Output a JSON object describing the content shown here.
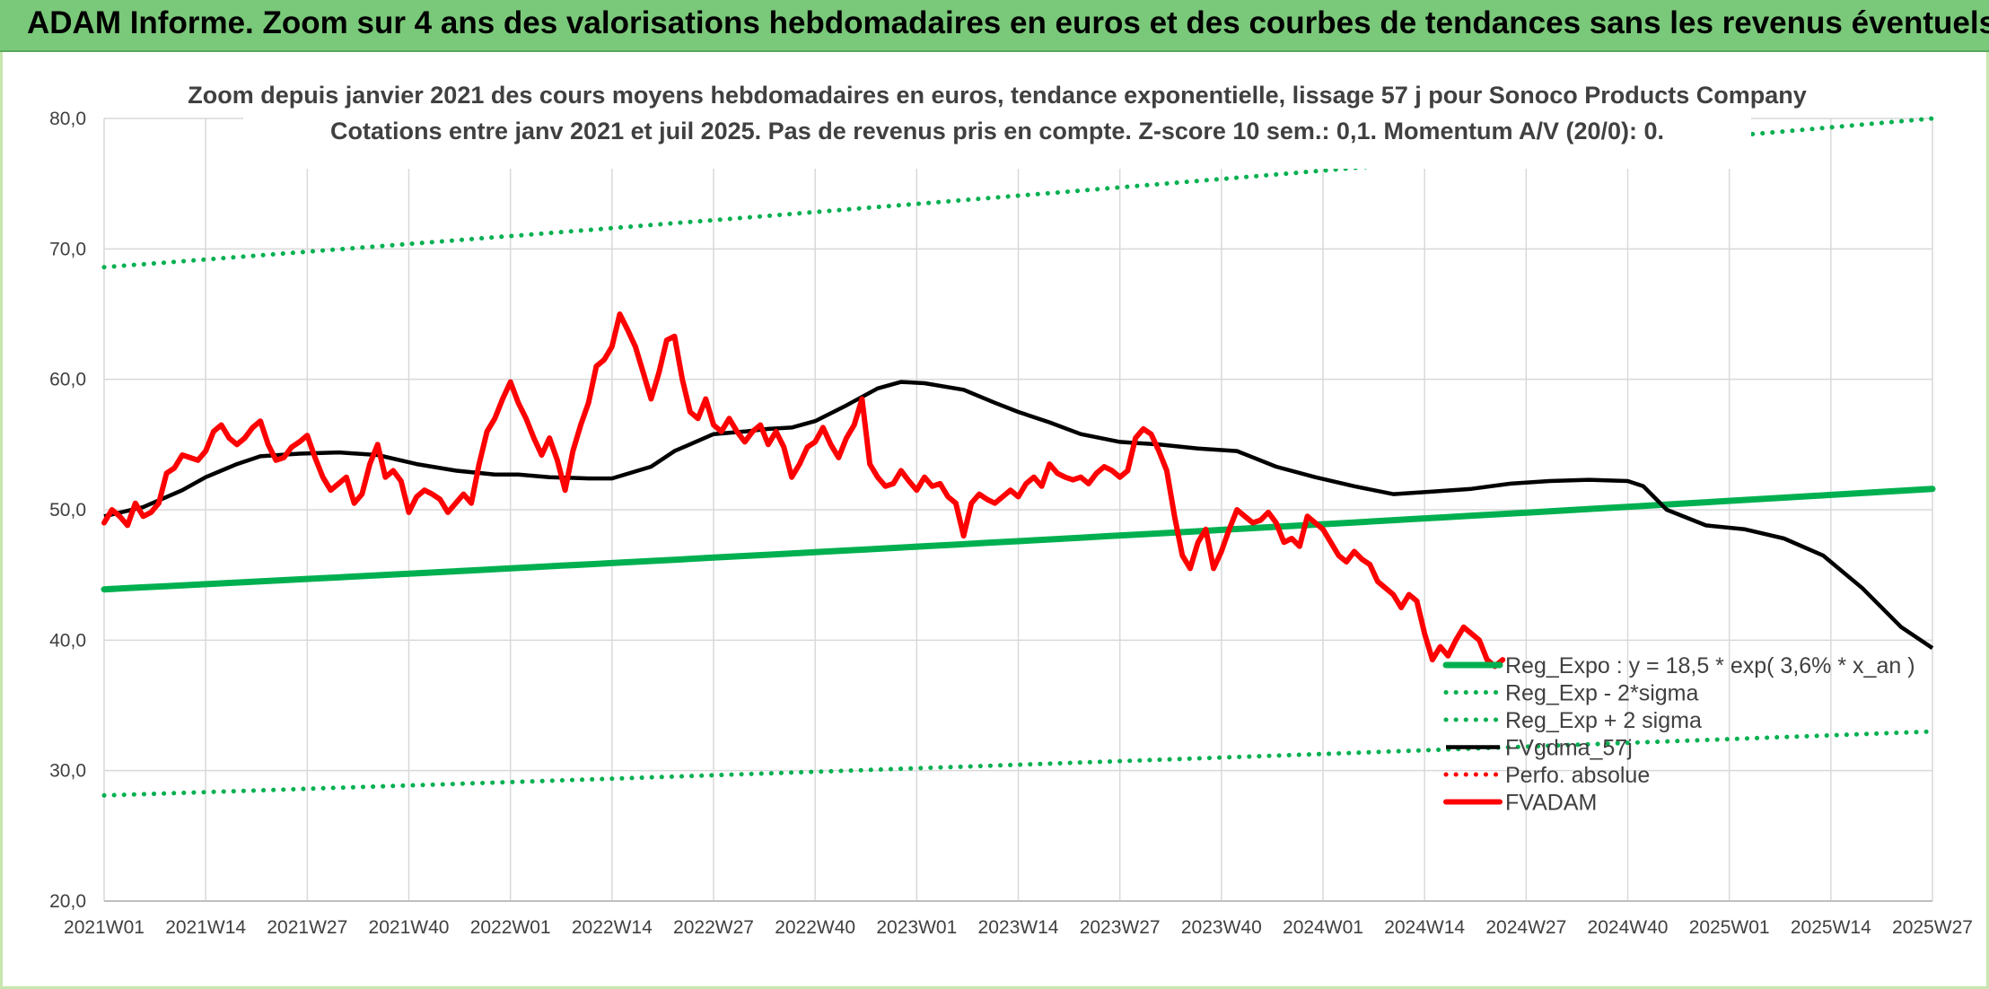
{
  "banner": {
    "title": "ADAM Informe. Zoom sur 4 ans des valorisations hebdomadaires en euros et des courbes de tendances sans les revenus éventuels"
  },
  "colors": {
    "banner": "#7ac87a",
    "reg_expo": "#00b050",
    "ma": "#000000",
    "price": "#ff0000",
    "grid": "#d9d9d9"
  },
  "chart_data": {
    "type": "line",
    "title": "Zoom depuis janvier 2021 des cours moyens hebdomadaires en euros, tendance exponentielle, lissage 57 j pour Sonoco Products Company",
    "subtitle": "Cotations entre janv 2021 et juil 2025. Pas de revenus pris en compte. Z-score 10 sem.: 0,1. Momentum A/V (20/0): 0.",
    "x_ticks": [
      "2021W01",
      "2021W14",
      "2021W27",
      "2021W40",
      "2022W01",
      "2022W14",
      "2022W27",
      "2022W40",
      "2023W01",
      "2023W14",
      "2023W27",
      "2023W40",
      "2024W01",
      "2024W14",
      "2024W27",
      "2024W40",
      "2025W01",
      "2025W14",
      "2025W27"
    ],
    "y_ticks": [
      "20,0",
      "30,0",
      "40,0",
      "50,0",
      "60,0",
      "70,0",
      "80,0"
    ],
    "ylim": [
      20,
      80
    ],
    "x_range_weeks": [
      0,
      234
    ],
    "grid": true,
    "legend_position": "bottom-right",
    "series": [
      {
        "name": "Reg_Expo : y = 18,5 * exp( 3,6% *  x_an )",
        "style": "solid-thick",
        "color": "#00b050",
        "points": [
          [
            0,
            43.9
          ],
          [
            234,
            51.6
          ]
        ]
      },
      {
        "name": "Reg_Exp - 2*sigma",
        "style": "dotted",
        "color": "#00b050",
        "points": [
          [
            0,
            28.1
          ],
          [
            234,
            33.0
          ]
        ]
      },
      {
        "name": "Reg_Exp + 2 sigma",
        "style": "dotted",
        "color": "#00b050",
        "points": [
          [
            0,
            68.6
          ],
          [
            234,
            80.0
          ]
        ]
      },
      {
        "name": "FVgdma_57j",
        "style": "solid",
        "color": "#000000",
        "points": [
          [
            0,
            49.5
          ],
          [
            5,
            50.2
          ],
          [
            10,
            51.5
          ],
          [
            13,
            52.5
          ],
          [
            17,
            53.5
          ],
          [
            20,
            54.1
          ],
          [
            25,
            54.3
          ],
          [
            30,
            54.4
          ],
          [
            35,
            54.2
          ],
          [
            40,
            53.5
          ],
          [
            45,
            53.0
          ],
          [
            50,
            52.7
          ],
          [
            53,
            52.7
          ],
          [
            57,
            52.5
          ],
          [
            62,
            52.4
          ],
          [
            65,
            52.4
          ],
          [
            70,
            53.3
          ],
          [
            73,
            54.5
          ],
          [
            78,
            55.8
          ],
          [
            82,
            56.0
          ],
          [
            85,
            56.2
          ],
          [
            88,
            56.3
          ],
          [
            91,
            56.8
          ],
          [
            95,
            58.0
          ],
          [
            99,
            59.3
          ],
          [
            102,
            59.8
          ],
          [
            105,
            59.7
          ],
          [
            110,
            59.2
          ],
          [
            114,
            58.2
          ],
          [
            117,
            57.5
          ],
          [
            121,
            56.7
          ],
          [
            125,
            55.8
          ],
          [
            130,
            55.2
          ],
          [
            135,
            55.0
          ],
          [
            140,
            54.7
          ],
          [
            145,
            54.5
          ],
          [
            150,
            53.3
          ],
          [
            155,
            52.5
          ],
          [
            160,
            51.8
          ],
          [
            165,
            51.2
          ],
          [
            170,
            51.4
          ],
          [
            175,
            51.6
          ],
          [
            180,
            52.0
          ],
          [
            185,
            52.2
          ],
          [
            190,
            52.3
          ],
          [
            195,
            52.2
          ],
          [
            197,
            51.8
          ],
          [
            200,
            50.0
          ],
          [
            205,
            48.8
          ],
          [
            210,
            48.5
          ],
          [
            215,
            47.8
          ],
          [
            220,
            46.5
          ],
          [
            225,
            44.0
          ],
          [
            230,
            41.0
          ],
          [
            234,
            39.4
          ]
        ]
      },
      {
        "name": "Perfo. absolue",
        "style": "dotted",
        "color": "#ff0000",
        "points": []
      },
      {
        "name": "FVADAM",
        "style": "solid-thick",
        "color": "#ff0000",
        "points": [
          [
            0,
            49.0
          ],
          [
            1,
            50.0
          ],
          [
            2,
            49.5
          ],
          [
            3,
            48.8
          ],
          [
            4,
            50.5
          ],
          [
            5,
            49.5
          ],
          [
            6,
            49.8
          ],
          [
            7,
            50.5
          ],
          [
            8,
            52.8
          ],
          [
            9,
            53.2
          ],
          [
            10,
            54.2
          ],
          [
            11,
            54.0
          ],
          [
            12,
            53.8
          ],
          [
            13,
            54.5
          ],
          [
            14,
            56.0
          ],
          [
            15,
            56.5
          ],
          [
            16,
            55.5
          ],
          [
            17,
            55.0
          ],
          [
            18,
            55.5
          ],
          [
            19,
            56.3
          ],
          [
            20,
            56.8
          ],
          [
            21,
            55.0
          ],
          [
            22,
            53.8
          ],
          [
            23,
            54.0
          ],
          [
            24,
            54.8
          ],
          [
            25,
            55.2
          ],
          [
            26,
            55.7
          ],
          [
            27,
            54.0
          ],
          [
            28,
            52.5
          ],
          [
            29,
            51.5
          ],
          [
            30,
            52.0
          ],
          [
            31,
            52.5
          ],
          [
            32,
            50.5
          ],
          [
            33,
            51.2
          ],
          [
            34,
            53.5
          ],
          [
            35,
            55.0
          ],
          [
            36,
            52.5
          ],
          [
            37,
            53.0
          ],
          [
            38,
            52.2
          ],
          [
            39,
            49.8
          ],
          [
            40,
            51.0
          ],
          [
            41,
            51.5
          ],
          [
            42,
            51.2
          ],
          [
            43,
            50.8
          ],
          [
            44,
            49.8
          ],
          [
            45,
            50.5
          ],
          [
            46,
            51.2
          ],
          [
            47,
            50.5
          ],
          [
            48,
            53.5
          ],
          [
            49,
            56.0
          ],
          [
            50,
            57.0
          ],
          [
            51,
            58.5
          ],
          [
            52,
            59.8
          ],
          [
            53,
            58.2
          ],
          [
            54,
            57.0
          ],
          [
            55,
            55.5
          ],
          [
            56,
            54.2
          ],
          [
            57,
            55.5
          ],
          [
            58,
            53.8
          ],
          [
            59,
            51.5
          ],
          [
            60,
            54.5
          ],
          [
            61,
            56.5
          ],
          [
            62,
            58.2
          ],
          [
            63,
            61.0
          ],
          [
            64,
            61.5
          ],
          [
            65,
            62.5
          ],
          [
            66,
            65.0
          ],
          [
            67,
            63.8
          ],
          [
            68,
            62.5
          ],
          [
            69,
            60.5
          ],
          [
            70,
            58.5
          ],
          [
            71,
            60.5
          ],
          [
            72,
            63.0
          ],
          [
            73,
            63.3
          ],
          [
            74,
            60.0
          ],
          [
            75,
            57.5
          ],
          [
            76,
            57.0
          ],
          [
            77,
            58.5
          ],
          [
            78,
            56.5
          ],
          [
            79,
            56.0
          ],
          [
            80,
            57.0
          ],
          [
            81,
            56.0
          ],
          [
            82,
            55.2
          ],
          [
            83,
            56.0
          ],
          [
            84,
            56.5
          ],
          [
            85,
            55.0
          ],
          [
            86,
            56.0
          ],
          [
            87,
            54.8
          ],
          [
            88,
            52.5
          ],
          [
            89,
            53.5
          ],
          [
            90,
            54.8
          ],
          [
            91,
            55.2
          ],
          [
            92,
            56.3
          ],
          [
            93,
            55.0
          ],
          [
            94,
            54.0
          ],
          [
            95,
            55.5
          ],
          [
            96,
            56.5
          ],
          [
            97,
            58.5
          ],
          [
            98,
            53.5
          ],
          [
            99,
            52.5
          ],
          [
            100,
            51.8
          ],
          [
            101,
            52.0
          ],
          [
            102,
            53.0
          ],
          [
            103,
            52.2
          ],
          [
            104,
            51.5
          ],
          [
            105,
            52.5
          ],
          [
            106,
            51.8
          ],
          [
            107,
            52.0
          ],
          [
            108,
            51.0
          ],
          [
            109,
            50.5
          ],
          [
            110,
            48.0
          ],
          [
            111,
            50.5
          ],
          [
            112,
            51.2
          ],
          [
            113,
            50.8
          ],
          [
            114,
            50.5
          ],
          [
            115,
            51.0
          ],
          [
            116,
            51.5
          ],
          [
            117,
            51.0
          ],
          [
            118,
            52.0
          ],
          [
            119,
            52.5
          ],
          [
            120,
            51.8
          ],
          [
            121,
            53.5
          ],
          [
            122,
            52.8
          ],
          [
            123,
            52.5
          ],
          [
            124,
            52.3
          ],
          [
            125,
            52.5
          ],
          [
            126,
            52.0
          ],
          [
            127,
            52.8
          ],
          [
            128,
            53.3
          ],
          [
            129,
            53.0
          ],
          [
            130,
            52.5
          ],
          [
            131,
            53.0
          ],
          [
            132,
            55.5
          ],
          [
            133,
            56.2
          ],
          [
            134,
            55.8
          ],
          [
            135,
            54.5
          ],
          [
            136,
            53.0
          ],
          [
            137,
            49.5
          ],
          [
            138,
            46.5
          ],
          [
            139,
            45.5
          ],
          [
            140,
            47.5
          ],
          [
            141,
            48.5
          ],
          [
            142,
            45.5
          ],
          [
            143,
            46.8
          ],
          [
            144,
            48.5
          ],
          [
            145,
            50.0
          ],
          [
            146,
            49.5
          ],
          [
            147,
            49.0
          ],
          [
            148,
            49.2
          ],
          [
            149,
            49.8
          ],
          [
            150,
            49.0
          ],
          [
            151,
            47.5
          ],
          [
            152,
            47.8
          ],
          [
            153,
            47.2
          ],
          [
            154,
            49.5
          ],
          [
            155,
            49.0
          ],
          [
            156,
            48.5
          ],
          [
            157,
            47.5
          ],
          [
            158,
            46.5
          ],
          [
            159,
            46.0
          ],
          [
            160,
            46.8
          ],
          [
            161,
            46.2
          ],
          [
            162,
            45.8
          ],
          [
            163,
            44.5
          ],
          [
            164,
            44.0
          ],
          [
            165,
            43.5
          ],
          [
            166,
            42.5
          ],
          [
            167,
            43.5
          ],
          [
            168,
            43.0
          ],
          [
            169,
            40.5
          ],
          [
            170,
            38.5
          ],
          [
            171,
            39.5
          ],
          [
            172,
            38.8
          ],
          [
            173,
            40.0
          ],
          [
            174,
            41.0
          ],
          [
            175,
            40.5
          ],
          [
            176,
            40.0
          ],
          [
            177,
            38.5
          ],
          [
            178,
            38.0
          ],
          [
            179,
            38.5
          ]
        ]
      }
    ]
  },
  "legend": [
    {
      "label": "Reg_Expo : y = 18,5 * exp( 3,6% *  x_an )",
      "style": "solid-thick",
      "color": "#00b050"
    },
    {
      "label": "Reg_Exp - 2*sigma",
      "style": "dotted",
      "color": "#00b050"
    },
    {
      "label": "Reg_Exp + 2 sigma",
      "style": "dotted",
      "color": "#00b050"
    },
    {
      "label": "FVgdma_57j",
      "style": "solid",
      "color": "#000000"
    },
    {
      "label": "Perfo. absolue",
      "style": "dotted",
      "color": "#ff0000"
    },
    {
      "label": "FVADAM",
      "style": "solid-thick",
      "color": "#ff0000"
    }
  ]
}
